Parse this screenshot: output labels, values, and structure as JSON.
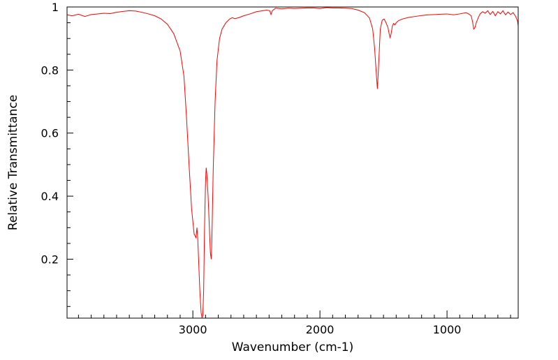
{
  "chart_data": {
    "type": "line",
    "title": "",
    "xlabel": "Wavenumber (cm-1)",
    "ylabel": "Relative Transmittance",
    "xlim": [
      3990,
      440
    ],
    "ylim": [
      0.013,
      1.0
    ],
    "x_reversed": true,
    "grid": false,
    "legend": "none",
    "line_color": "#ff0000",
    "x_ticks": [
      {
        "value": 3000,
        "label": "3000"
      },
      {
        "value": 2000,
        "label": "2000"
      },
      {
        "value": 1000,
        "label": "1000"
      }
    ],
    "y_ticks": [
      {
        "value": 0.2,
        "label": "0.2"
      },
      {
        "value": 0.4,
        "label": "0.4"
      },
      {
        "value": 0.6,
        "label": "0.6"
      },
      {
        "value": 0.8,
        "label": "0.8"
      },
      {
        "value": 1.0,
        "label": "1"
      }
    ],
    "series": [
      {
        "points": [
          [
            3990,
            0.975
          ],
          [
            3950,
            0.972
          ],
          [
            3900,
            0.977
          ],
          [
            3850,
            0.97
          ],
          [
            3800,
            0.976
          ],
          [
            3750,
            0.978
          ],
          [
            3700,
            0.98
          ],
          [
            3650,
            0.979
          ],
          [
            3600,
            0.983
          ],
          [
            3550,
            0.986
          ],
          [
            3500,
            0.988
          ],
          [
            3450,
            0.987
          ],
          [
            3400,
            0.983
          ],
          [
            3350,
            0.978
          ],
          [
            3300,
            0.972
          ],
          [
            3250,
            0.962
          ],
          [
            3200,
            0.945
          ],
          [
            3150,
            0.915
          ],
          [
            3100,
            0.86
          ],
          [
            3070,
            0.78
          ],
          [
            3050,
            0.65
          ],
          [
            3030,
            0.5
          ],
          [
            3010,
            0.36
          ],
          [
            2990,
            0.28
          ],
          [
            2975,
            0.268
          ],
          [
            2968,
            0.3
          ],
          [
            2962,
            0.27
          ],
          [
            2955,
            0.2
          ],
          [
            2945,
            0.1
          ],
          [
            2935,
            0.03
          ],
          [
            2928,
            0.015
          ],
          [
            2922,
            0.02
          ],
          [
            2915,
            0.1
          ],
          [
            2908,
            0.3
          ],
          [
            2900,
            0.45
          ],
          [
            2895,
            0.49
          ],
          [
            2890,
            0.47
          ],
          [
            2880,
            0.4
          ],
          [
            2870,
            0.3
          ],
          [
            2862,
            0.22
          ],
          [
            2855,
            0.2
          ],
          [
            2850,
            0.27
          ],
          [
            2840,
            0.48
          ],
          [
            2825,
            0.7
          ],
          [
            2810,
            0.83
          ],
          [
            2790,
            0.9
          ],
          [
            2770,
            0.93
          ],
          [
            2740,
            0.95
          ],
          [
            2710,
            0.962
          ],
          [
            2690,
            0.966
          ],
          [
            2670,
            0.963
          ],
          [
            2640,
            0.966
          ],
          [
            2600,
            0.972
          ],
          [
            2550,
            0.978
          ],
          [
            2500,
            0.985
          ],
          [
            2450,
            0.988
          ],
          [
            2420,
            0.99
          ],
          [
            2395,
            0.988
          ],
          [
            2385,
            0.976
          ],
          [
            2375,
            0.988
          ],
          [
            2350,
            0.996
          ],
          [
            2300,
            0.994
          ],
          [
            2250,
            0.996
          ],
          [
            2200,
            0.995
          ],
          [
            2150,
            0.996
          ],
          [
            2100,
            0.997
          ],
          [
            2050,
            0.997
          ],
          [
            2000,
            0.995
          ],
          [
            1950,
            0.998
          ],
          [
            1900,
            0.997
          ],
          [
            1850,
            0.997
          ],
          [
            1800,
            0.996
          ],
          [
            1750,
            0.995
          ],
          [
            1700,
            0.99
          ],
          [
            1650,
            0.982
          ],
          [
            1610,
            0.965
          ],
          [
            1585,
            0.93
          ],
          [
            1570,
            0.87
          ],
          [
            1555,
            0.78
          ],
          [
            1548,
            0.74
          ],
          [
            1540,
            0.8
          ],
          [
            1525,
            0.93
          ],
          [
            1510,
            0.958
          ],
          [
            1495,
            0.962
          ],
          [
            1480,
            0.95
          ],
          [
            1465,
            0.935
          ],
          [
            1455,
            0.914
          ],
          [
            1448,
            0.903
          ],
          [
            1440,
            0.915
          ],
          [
            1430,
            0.94
          ],
          [
            1420,
            0.948
          ],
          [
            1410,
            0.943
          ],
          [
            1400,
            0.95
          ],
          [
            1380,
            0.957
          ],
          [
            1350,
            0.962
          ],
          [
            1300,
            0.967
          ],
          [
            1250,
            0.97
          ],
          [
            1200,
            0.973
          ],
          [
            1150,
            0.975
          ],
          [
            1100,
            0.976
          ],
          [
            1050,
            0.977
          ],
          [
            1000,
            0.978
          ],
          [
            950,
            0.975
          ],
          [
            900,
            0.978
          ],
          [
            850,
            0.982
          ],
          [
            830,
            0.978
          ],
          [
            810,
            0.972
          ],
          [
            800,
            0.955
          ],
          [
            790,
            0.93
          ],
          [
            780,
            0.935
          ],
          [
            770,
            0.95
          ],
          [
            755,
            0.965
          ],
          [
            740,
            0.978
          ],
          [
            720,
            0.985
          ],
          [
            700,
            0.98
          ],
          [
            680,
            0.988
          ],
          [
            660,
            0.976
          ],
          [
            640,
            0.986
          ],
          [
            620,
            0.972
          ],
          [
            600,
            0.985
          ],
          [
            580,
            0.978
          ],
          [
            560,
            0.988
          ],
          [
            540,
            0.975
          ],
          [
            520,
            0.984
          ],
          [
            500,
            0.976
          ],
          [
            480,
            0.982
          ],
          [
            460,
            0.97
          ],
          [
            445,
            0.955
          ],
          [
            440,
            0.94
          ]
        ]
      }
    ]
  }
}
